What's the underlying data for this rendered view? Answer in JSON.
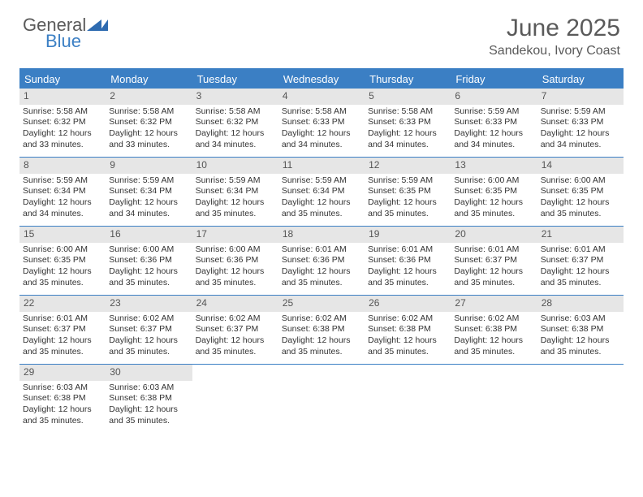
{
  "logo": {
    "word1": "General",
    "word2": "Blue"
  },
  "title": "June 2025",
  "location": "Sandekou, Ivory Coast",
  "colors": {
    "header_bg": "#3b7fc4",
    "daynum_bg": "#e6e6e6",
    "text": "#333333",
    "title_text": "#5a5a5a"
  },
  "weekdays": [
    "Sunday",
    "Monday",
    "Tuesday",
    "Wednesday",
    "Thursday",
    "Friday",
    "Saturday"
  ],
  "weeks": [
    [
      {
        "n": "1",
        "sr": "5:58 AM",
        "ss": "6:32 PM",
        "dl": "12 hours and 33 minutes."
      },
      {
        "n": "2",
        "sr": "5:58 AM",
        "ss": "6:32 PM",
        "dl": "12 hours and 33 minutes."
      },
      {
        "n": "3",
        "sr": "5:58 AM",
        "ss": "6:32 PM",
        "dl": "12 hours and 34 minutes."
      },
      {
        "n": "4",
        "sr": "5:58 AM",
        "ss": "6:33 PM",
        "dl": "12 hours and 34 minutes."
      },
      {
        "n": "5",
        "sr": "5:58 AM",
        "ss": "6:33 PM",
        "dl": "12 hours and 34 minutes."
      },
      {
        "n": "6",
        "sr": "5:59 AM",
        "ss": "6:33 PM",
        "dl": "12 hours and 34 minutes."
      },
      {
        "n": "7",
        "sr": "5:59 AM",
        "ss": "6:33 PM",
        "dl": "12 hours and 34 minutes."
      }
    ],
    [
      {
        "n": "8",
        "sr": "5:59 AM",
        "ss": "6:34 PM",
        "dl": "12 hours and 34 minutes."
      },
      {
        "n": "9",
        "sr": "5:59 AM",
        "ss": "6:34 PM",
        "dl": "12 hours and 34 minutes."
      },
      {
        "n": "10",
        "sr": "5:59 AM",
        "ss": "6:34 PM",
        "dl": "12 hours and 35 minutes."
      },
      {
        "n": "11",
        "sr": "5:59 AM",
        "ss": "6:34 PM",
        "dl": "12 hours and 35 minutes."
      },
      {
        "n": "12",
        "sr": "5:59 AM",
        "ss": "6:35 PM",
        "dl": "12 hours and 35 minutes."
      },
      {
        "n": "13",
        "sr": "6:00 AM",
        "ss": "6:35 PM",
        "dl": "12 hours and 35 minutes."
      },
      {
        "n": "14",
        "sr": "6:00 AM",
        "ss": "6:35 PM",
        "dl": "12 hours and 35 minutes."
      }
    ],
    [
      {
        "n": "15",
        "sr": "6:00 AM",
        "ss": "6:35 PM",
        "dl": "12 hours and 35 minutes."
      },
      {
        "n": "16",
        "sr": "6:00 AM",
        "ss": "6:36 PM",
        "dl": "12 hours and 35 minutes."
      },
      {
        "n": "17",
        "sr": "6:00 AM",
        "ss": "6:36 PM",
        "dl": "12 hours and 35 minutes."
      },
      {
        "n": "18",
        "sr": "6:01 AM",
        "ss": "6:36 PM",
        "dl": "12 hours and 35 minutes."
      },
      {
        "n": "19",
        "sr": "6:01 AM",
        "ss": "6:36 PM",
        "dl": "12 hours and 35 minutes."
      },
      {
        "n": "20",
        "sr": "6:01 AM",
        "ss": "6:37 PM",
        "dl": "12 hours and 35 minutes."
      },
      {
        "n": "21",
        "sr": "6:01 AM",
        "ss": "6:37 PM",
        "dl": "12 hours and 35 minutes."
      }
    ],
    [
      {
        "n": "22",
        "sr": "6:01 AM",
        "ss": "6:37 PM",
        "dl": "12 hours and 35 minutes."
      },
      {
        "n": "23",
        "sr": "6:02 AM",
        "ss": "6:37 PM",
        "dl": "12 hours and 35 minutes."
      },
      {
        "n": "24",
        "sr": "6:02 AM",
        "ss": "6:37 PM",
        "dl": "12 hours and 35 minutes."
      },
      {
        "n": "25",
        "sr": "6:02 AM",
        "ss": "6:38 PM",
        "dl": "12 hours and 35 minutes."
      },
      {
        "n": "26",
        "sr": "6:02 AM",
        "ss": "6:38 PM",
        "dl": "12 hours and 35 minutes."
      },
      {
        "n": "27",
        "sr": "6:02 AM",
        "ss": "6:38 PM",
        "dl": "12 hours and 35 minutes."
      },
      {
        "n": "28",
        "sr": "6:03 AM",
        "ss": "6:38 PM",
        "dl": "12 hours and 35 minutes."
      }
    ],
    [
      {
        "n": "29",
        "sr": "6:03 AM",
        "ss": "6:38 PM",
        "dl": "12 hours and 35 minutes."
      },
      {
        "n": "30",
        "sr": "6:03 AM",
        "ss": "6:38 PM",
        "dl": "12 hours and 35 minutes."
      },
      null,
      null,
      null,
      null,
      null
    ]
  ],
  "labels": {
    "sunrise": "Sunrise:",
    "sunset": "Sunset:",
    "daylight": "Daylight:"
  }
}
